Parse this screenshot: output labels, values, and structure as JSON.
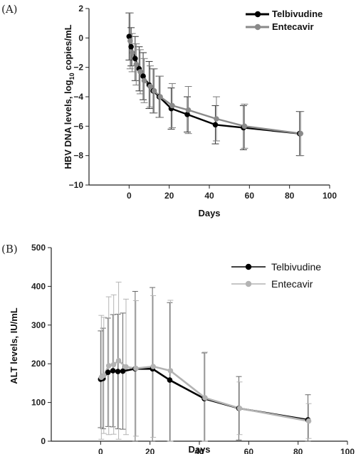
{
  "chart_data": [
    {
      "panel": "(A)",
      "type": "line",
      "xlabel": "Days",
      "ylabel_main": "HBV DNA levels, log",
      "ylabel_sub": "10",
      "ylabel_tail": " copies/mL",
      "xlim": [
        -20,
        100
      ],
      "ylim": [
        -10,
        2
      ],
      "xticks": [
        "0",
        "20",
        "40",
        "60",
        "80",
        "100"
      ],
      "yticks": [
        "2",
        "0",
        "−2",
        "−4",
        "−6",
        "−8",
        "−10"
      ],
      "grid": false,
      "legend_position": "top-right",
      "series": [
        {
          "name": "Telbivudine",
          "color": "#000000",
          "x": [
            0,
            1,
            3,
            5,
            7,
            10,
            12,
            15,
            21,
            29,
            43,
            57,
            85
          ],
          "y": [
            0.1,
            -0.6,
            -1.4,
            -2.1,
            -2.6,
            -3.2,
            -3.6,
            -4.0,
            -4.8,
            -5.2,
            -5.9,
            -6.1,
            -6.5
          ],
          "err": [
            1.6,
            1.3,
            1.5,
            1.5,
            1.6,
            1.6,
            1.5,
            1.4,
            1.4,
            1.2,
            1.3,
            1.5,
            1.5
          ]
        },
        {
          "name": "Entecavir",
          "color": "#8a8a8a",
          "x": [
            0,
            1,
            3,
            5,
            7,
            10,
            12,
            15,
            21,
            29,
            43,
            57,
            85
          ],
          "y": [
            -0.2,
            -1.0,
            -1.8,
            -2.3,
            -2.9,
            -3.3,
            -3.6,
            -4.0,
            -4.6,
            -4.9,
            -5.5,
            -6.0,
            -6.5
          ],
          "err": [
            1.9,
            1.3,
            1.4,
            1.5,
            1.5,
            1.4,
            1.5,
            1.4,
            1.5,
            1.6,
            1.5,
            1.5,
            1.5
          ]
        }
      ]
    },
    {
      "panel": "(B)",
      "type": "line",
      "xlabel": "Days",
      "ylabel": "ALT levels, IU/mL",
      "xlim": [
        -20,
        100
      ],
      "ylim": [
        0,
        500
      ],
      "xticks": [
        "0",
        "20",
        "40",
        "60",
        "80",
        "100"
      ],
      "yticks": [
        "500",
        "400",
        "300",
        "200",
        "100",
        "0"
      ],
      "grid": false,
      "legend_position": "top-right",
      "series": [
        {
          "name": "Telbivudine",
          "color": "#000000",
          "x": [
            0,
            1,
            3,
            5,
            7,
            9,
            14,
            21,
            28,
            42,
            56,
            84
          ],
          "y": [
            160,
            162,
            178,
            182,
            180,
            181,
            187,
            187,
            158,
            110,
            85,
            55
          ],
          "err": [
            125,
            130,
            140,
            145,
            148,
            150,
            200,
            210,
            200,
            118,
            82,
            65
          ]
        },
        {
          "name": "Entecavir",
          "color": "#b3b3b3",
          "x": [
            0,
            1,
            3,
            5,
            7,
            10,
            14,
            21,
            28,
            42,
            56,
            84
          ],
          "y": [
            165,
            170,
            195,
            198,
            208,
            192,
            188,
            193,
            182,
            112,
            85,
            52
          ],
          "err": [
            160,
            150,
            178,
            180,
            203,
            175,
            175,
            183,
            182,
            118,
            68,
            45
          ]
        }
      ]
    }
  ]
}
